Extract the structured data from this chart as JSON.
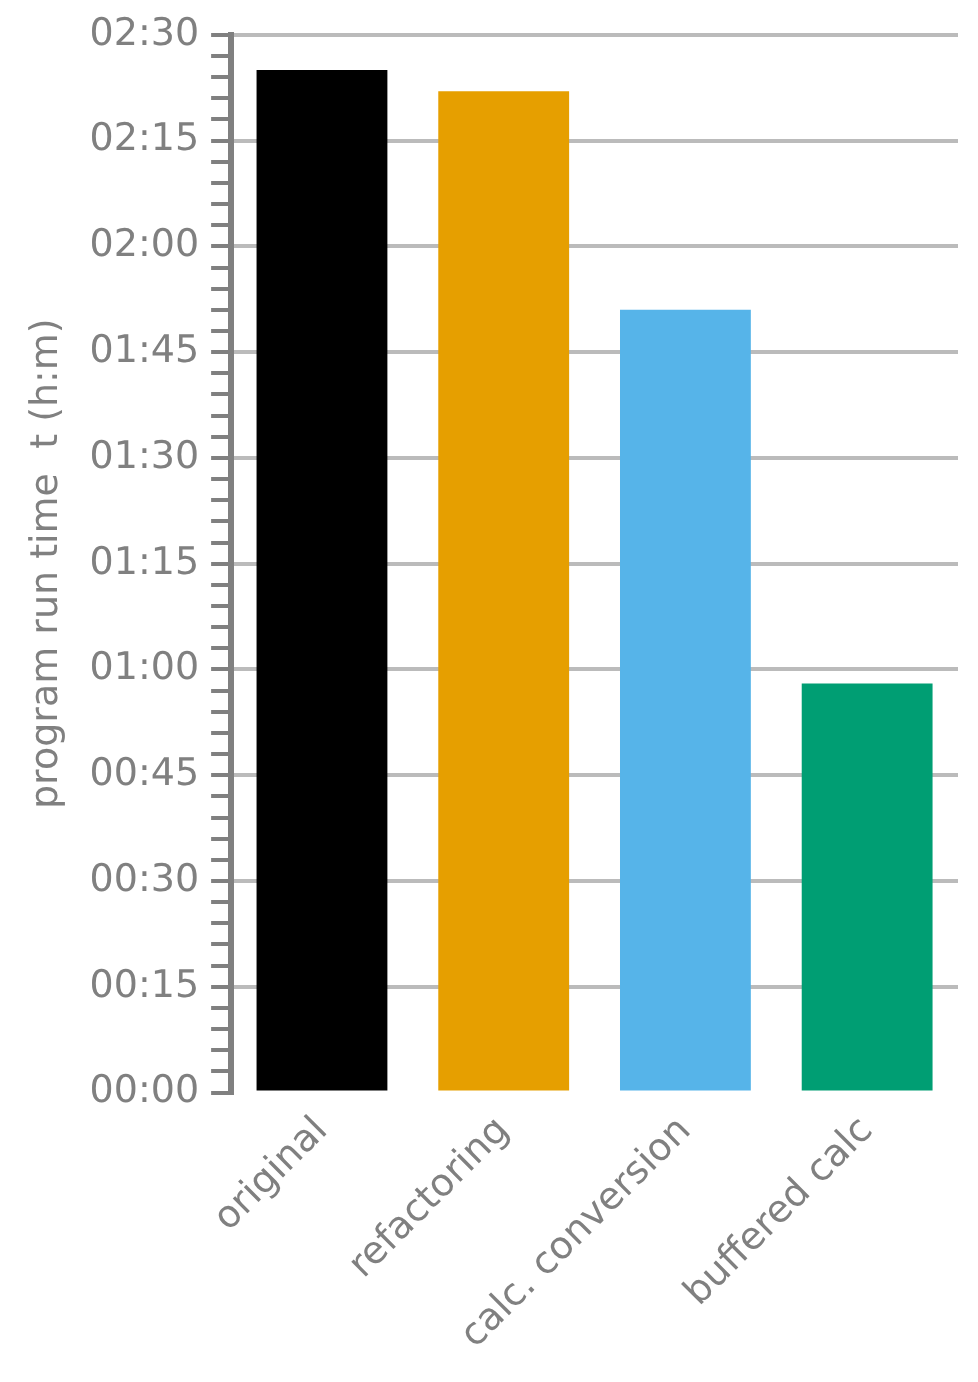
{
  "chart_data": {
    "type": "bar",
    "ylabel": "program run time  t (h:m)",
    "categories": [
      "original",
      "refactoring",
      "calc. conversion",
      "buffered calc"
    ],
    "values": [
      145,
      142,
      111,
      58
    ],
    "colors": [
      "#000000",
      "#e69f00",
      "#56b4e9",
      "#009e73"
    ],
    "ylim": [
      0,
      150
    ],
    "yticks": [
      {
        "value": 0,
        "label": "00:00"
      },
      {
        "value": 3,
        "label": null
      },
      {
        "value": 6,
        "label": null
      },
      {
        "value": 9,
        "label": null
      },
      {
        "value": 12,
        "label": null
      },
      {
        "value": 15,
        "label": "00:15"
      },
      {
        "value": 18,
        "label": null
      },
      {
        "value": 21,
        "label": null
      },
      {
        "value": 24,
        "label": null
      },
      {
        "value": 27,
        "label": null
      },
      {
        "value": 30,
        "label": "00:30"
      },
      {
        "value": 33,
        "label": null
      },
      {
        "value": 36,
        "label": null
      },
      {
        "value": 39,
        "label": null
      },
      {
        "value": 42,
        "label": null
      },
      {
        "value": 45,
        "label": "00:45"
      },
      {
        "value": 48,
        "label": null
      },
      {
        "value": 51,
        "label": null
      },
      {
        "value": 54,
        "label": null
      },
      {
        "value": 57,
        "label": null
      },
      {
        "value": 60,
        "label": "01:00"
      },
      {
        "value": 63,
        "label": null
      },
      {
        "value": 66,
        "label": null
      },
      {
        "value": 69,
        "label": null
      },
      {
        "value": 72,
        "label": null
      },
      {
        "value": 75,
        "label": "01:15"
      },
      {
        "value": 78,
        "label": null
      },
      {
        "value": 81,
        "label": null
      },
      {
        "value": 84,
        "label": null
      },
      {
        "value": 87,
        "label": null
      },
      {
        "value": 90,
        "label": "01:30"
      },
      {
        "value": 93,
        "label": null
      },
      {
        "value": 96,
        "label": null
      },
      {
        "value": 99,
        "label": null
      },
      {
        "value": 102,
        "label": null
      },
      {
        "value": 105,
        "label": "01:45"
      },
      {
        "value": 108,
        "label": null
      },
      {
        "value": 111,
        "label": null
      },
      {
        "value": 114,
        "label": null
      },
      {
        "value": 117,
        "label": null
      },
      {
        "value": 120,
        "label": "02:00"
      },
      {
        "value": 123,
        "label": null
      },
      {
        "value": 126,
        "label": null
      },
      {
        "value": 129,
        "label": null
      },
      {
        "value": 132,
        "label": null
      },
      {
        "value": 135,
        "label": "02:15"
      },
      {
        "value": 138,
        "label": null
      },
      {
        "value": 141,
        "label": null
      },
      {
        "value": 144,
        "label": null
      },
      {
        "value": 147,
        "label": null
      },
      {
        "value": 150,
        "label": "02:30"
      }
    ],
    "grid": "y",
    "legend": false
  }
}
